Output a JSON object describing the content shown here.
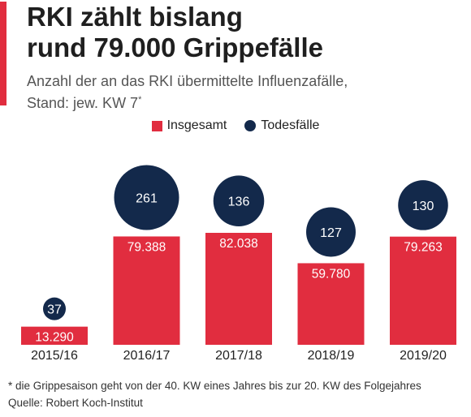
{
  "header": {
    "title_line1": "RKI zählt bislang",
    "title_line2": "rund 79.000 Grippefälle",
    "subtitle_line1": "Anzahl der an das RKI übermittelte Influenzafälle,",
    "subtitle_line2": "Stand: jew. KW 7",
    "subtitle_sup": "*"
  },
  "legend": {
    "total_label": "Insgesamt",
    "deaths_label": "Todesfälle"
  },
  "colors": {
    "bar": "#e12d3f",
    "circle": "#13294b",
    "label_on_bar": "#ffffff"
  },
  "chart_data": {
    "type": "bar",
    "title": "RKI zählt bislang rund 79.000 Grippefälle",
    "subtitle": "Anzahl der an das RKI übermittelte Influenzafälle, Stand: jew. KW 7*",
    "categories": [
      "2015/16",
      "2016/17",
      "2017/18",
      "2018/19",
      "2019/20"
    ],
    "series": [
      {
        "name": "Insgesamt",
        "values": [
          13290,
          79388,
          82038,
          59780,
          79263
        ],
        "labels": [
          "13.290",
          "79.388",
          "82.038",
          "59.780",
          "79.263"
        ]
      },
      {
        "name": "Todesfälle",
        "values": [
          37,
          261,
          136,
          127,
          130
        ],
        "labels": [
          "37",
          "261",
          "136",
          "127",
          "130"
        ]
      }
    ],
    "ylim": [
      0,
      82038
    ],
    "grid": false,
    "legend_position": "top-center"
  },
  "footer": {
    "footnote": "* die Grippesaison geht von der 40. KW eines Jahres bis zur 20. KW des Folgejahres",
    "source": "Quelle: Robert Koch-Institut"
  }
}
